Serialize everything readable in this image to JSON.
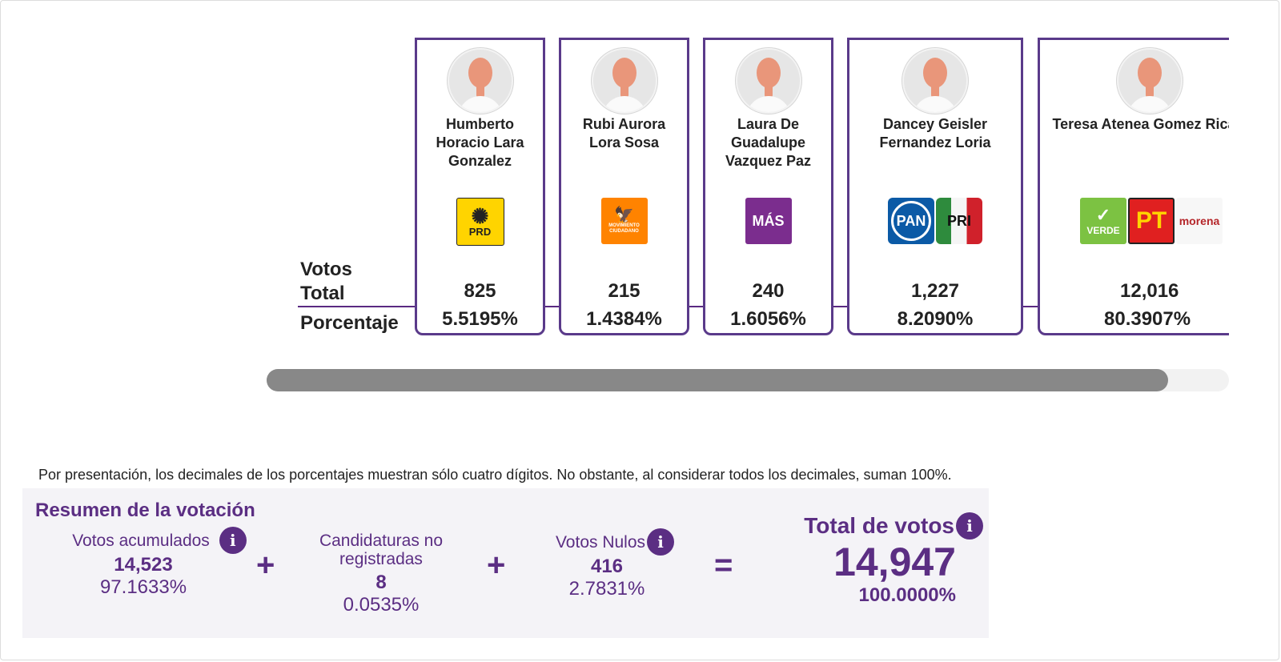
{
  "row_labels": {
    "votos_total": "Votos\nTotal",
    "porcentaje": "Porcentaje"
  },
  "candidates": [
    {
      "name": "Humberto Horacio Lara Gonzalez",
      "logos": [
        "PRD"
      ],
      "total": "825",
      "pct": "5.5195%"
    },
    {
      "name": "Rubi Aurora Lora Sosa",
      "logos": [
        "MOVIMIENTO CIUDADANO"
      ],
      "total": "215",
      "pct": "1.4384%"
    },
    {
      "name": "Laura De Guadalupe Vazquez Paz",
      "logos": [
        "MÁS"
      ],
      "total": "240",
      "pct": "1.6056%"
    },
    {
      "name": "Dancey Geisler Fernandez Loria",
      "logos": [
        "PAN",
        "PRI"
      ],
      "total": "1,227",
      "pct": "8.2090%"
    },
    {
      "name": "Teresa Atenea Gomez Ricalde",
      "logos": [
        "VERDE",
        "PT",
        "morena"
      ],
      "total": "12,016",
      "pct": "80.3907%"
    }
  ],
  "footnote": "Por presentación, los decimales de los porcentajes muestran sólo cuatro dígitos. No obstante, al considerar todos los decimales, suman 100%.",
  "summary": {
    "title": "Resumen de la votación",
    "acumulados": {
      "label": "Votos acumulados",
      "value": "14,523",
      "pct": "97.1633%"
    },
    "no_registradas": {
      "label": "Candidaturas no registradas",
      "value": "8",
      "pct": "0.0535%"
    },
    "nulos": {
      "label": "Votos Nulos",
      "value": "416",
      "pct": "2.7831%"
    },
    "total": {
      "label": "Total de votos",
      "value": "14,947",
      "pct": "100.0000%"
    },
    "ops": {
      "plus": "+",
      "equals": "="
    }
  },
  "colors": {
    "accent": "#5b2e83",
    "card_border": "#5a3a8a"
  },
  "icons": {
    "info": "info-icon",
    "avatar": "avatar-placeholder-icon"
  }
}
